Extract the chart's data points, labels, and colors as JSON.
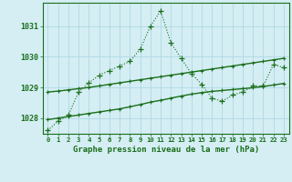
{
  "hours": [
    0,
    1,
    2,
    3,
    4,
    5,
    6,
    7,
    8,
    9,
    10,
    11,
    12,
    13,
    14,
    15,
    16,
    17,
    18,
    19,
    20,
    21,
    22,
    23
  ],
  "pressure_dotted": [
    1027.6,
    1027.9,
    1028.1,
    1028.85,
    1029.15,
    1029.4,
    1029.55,
    1029.7,
    1029.85,
    1030.25,
    1031.0,
    1031.5,
    1030.45,
    1029.95,
    1029.45,
    1029.1,
    1028.65,
    1028.55,
    1028.75,
    1028.85,
    1029.05,
    1029.05,
    1029.75,
    1029.65
  ],
  "pressure_solid_upper": [
    1028.85,
    1028.88,
    1028.92,
    1028.96,
    1029.0,
    1029.05,
    1029.1,
    1029.15,
    1029.2,
    1029.25,
    1029.3,
    1029.35,
    1029.4,
    1029.45,
    1029.5,
    1029.55,
    1029.6,
    1029.65,
    1029.7,
    1029.75,
    1029.8,
    1029.85,
    1029.9,
    1029.95
  ],
  "pressure_solid_lower": [
    1027.95,
    1028.0,
    1028.05,
    1028.1,
    1028.15,
    1028.2,
    1028.25,
    1028.3,
    1028.37,
    1028.44,
    1028.52,
    1028.58,
    1028.65,
    1028.72,
    1028.78,
    1028.83,
    1028.87,
    1028.9,
    1028.93,
    1028.96,
    1028.99,
    1029.03,
    1029.08,
    1029.13
  ],
  "ylim_bottom": 1027.5,
  "ylim_top": 1031.75,
  "yticks": [
    1028,
    1029,
    1030,
    1031
  ],
  "xlim_left": -0.5,
  "xlim_right": 23.5,
  "xlabel": "Graphe pression niveau de la mer (hPa)",
  "dot_color": "#1a6e1a",
  "line_color": "#1a6e1a",
  "bg_color": "#d4eef4",
  "grid_color": "#b0d8e4",
  "text_color": "#1a6e1a",
  "figsize": [
    3.2,
    2.0
  ],
  "dpi": 100
}
